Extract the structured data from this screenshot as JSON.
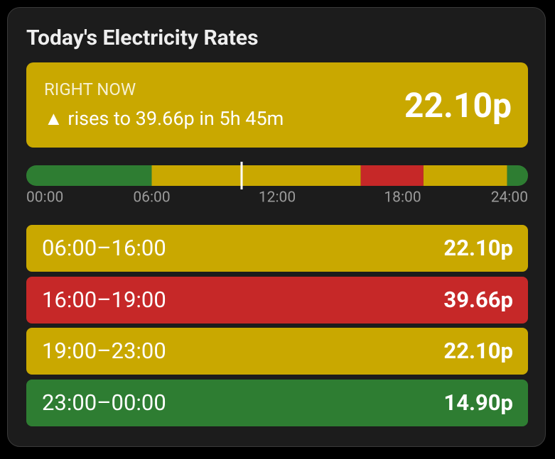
{
  "title": "Today's Electricity Rates",
  "now": {
    "label": "RIGHT NOW",
    "message": "▲ rises to 39.66p in 5h 45m",
    "price": "22.10p",
    "color": "#c9a800"
  },
  "timeline": {
    "xlim": [
      0,
      24
    ],
    "ticks": [
      {
        "value": 0,
        "label": "00:00"
      },
      {
        "value": 6,
        "label": "06:00"
      },
      {
        "value": 12,
        "label": "12:00"
      },
      {
        "value": 18,
        "label": "18:00"
      },
      {
        "value": 24,
        "label": "24:00"
      }
    ],
    "segments": [
      {
        "start": 0,
        "end": 6,
        "color": "#2e7d32"
      },
      {
        "start": 6,
        "end": 16,
        "color": "#c9a800"
      },
      {
        "start": 16,
        "end": 19,
        "color": "#c62828"
      },
      {
        "start": 19,
        "end": 23,
        "color": "#c9a800"
      },
      {
        "start": 23,
        "end": 24,
        "color": "#2e7d32"
      }
    ],
    "marker": 10.3
  },
  "rates": [
    {
      "period": "06:00–16:00",
      "price": "22.10p",
      "color": "#c9a800"
    },
    {
      "period": "16:00–19:00",
      "price": "39.66p",
      "color": "#c62828"
    },
    {
      "period": "19:00–23:00",
      "price": "22.10p",
      "color": "#c9a800"
    },
    {
      "period": "23:00–00:00",
      "price": "14.90p",
      "color": "#2e7d32"
    }
  ]
}
